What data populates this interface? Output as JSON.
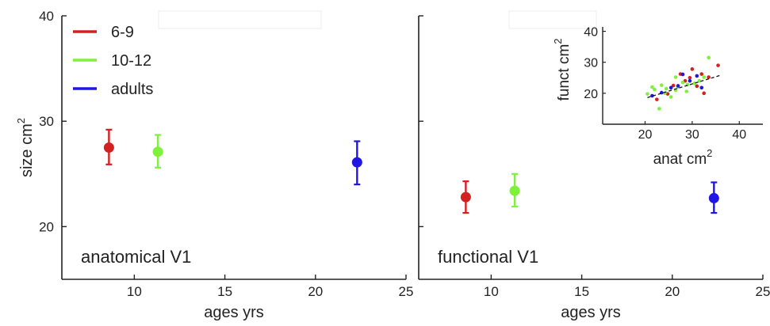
{
  "colors": {
    "c69": "#d32020",
    "c1012": "#7ef23a",
    "cad": "#1f16e6",
    "axis": "#222222"
  },
  "legend": {
    "items": [
      {
        "label": "6-9",
        "color": "#d32020"
      },
      {
        "label": "10-12",
        "color": "#7ef23a"
      },
      {
        "label": "adults",
        "color": "#1f16e6"
      }
    ]
  },
  "chart_data": [
    {
      "type": "scatter",
      "title": "anatomical V1",
      "xlabel": "ages yrs",
      "ylabel": "size cm",
      "ylabel_sup": "2",
      "xlim": [
        6,
        25
      ],
      "ylim": [
        15,
        40
      ],
      "xticks": [
        10,
        15,
        20,
        25
      ],
      "yticks": [
        20,
        30,
        40
      ],
      "series": [
        {
          "name": "6-9",
          "color": "#d32020",
          "x": 8.6,
          "y": 27.5,
          "err": [
            25.9,
            29.2
          ]
        },
        {
          "name": "10-12",
          "color": "#7ef23a",
          "x": 11.3,
          "y": 27.1,
          "err": [
            25.6,
            28.7
          ]
        },
        {
          "name": "adults",
          "color": "#1f16e6",
          "x": 22.3,
          "y": 26.1,
          "err": [
            24.0,
            28.1
          ]
        }
      ]
    },
    {
      "type": "scatter",
      "title": "functional V1",
      "xlabel": "ages yrs",
      "xlim": [
        6,
        25
      ],
      "ylim": [
        15,
        40
      ],
      "xticks": [
        10,
        15,
        20,
        25
      ],
      "series": [
        {
          "name": "6-9",
          "color": "#d32020",
          "x": 8.6,
          "y": 22.8,
          "err": [
            21.3,
            24.3
          ]
        },
        {
          "name": "10-12",
          "color": "#7ef23a",
          "x": 11.3,
          "y": 23.4,
          "err": [
            21.9,
            25.0
          ]
        },
        {
          "name": "adults",
          "color": "#1f16e6",
          "x": 22.3,
          "y": 22.7,
          "err": [
            21.3,
            24.2
          ]
        }
      ]
    },
    {
      "type": "scatter",
      "xlabel": "anat cm",
      "xlabel_sup": "2",
      "ylabel": "funct cm",
      "ylabel_sup": "2",
      "xlim": [
        11,
        45
      ],
      "ylim": [
        10,
        45
      ],
      "xticks": [
        20,
        30,
        40
      ],
      "yticks": [
        20,
        30,
        40
      ],
      "fit_line": [
        [
          20.5,
          18.6
        ],
        [
          36.0,
          25.8
        ]
      ],
      "series": [
        {
          "name": "6-9",
          "color": "#d32020",
          "points": [
            [
              22.5,
              18.0
            ],
            [
              24.8,
              19.8
            ],
            [
              26.0,
              22.5
            ],
            [
              27.5,
              26.2
            ],
            [
              28.5,
              24.0
            ],
            [
              30.0,
              27.8
            ],
            [
              31.0,
              22.3
            ],
            [
              32.0,
              26.2
            ],
            [
              33.5,
              25.2
            ],
            [
              35.5,
              29.0
            ],
            [
              32.5,
              20.0
            ],
            [
              29.5,
              25.0
            ]
          ]
        },
        {
          "name": "10-12",
          "color": "#7ef23a",
          "points": [
            [
              20.5,
              19.8
            ],
            [
              21.5,
              22.0
            ],
            [
              22.0,
              21.2
            ],
            [
              23.0,
              15.0
            ],
            [
              23.5,
              22.6
            ],
            [
              24.5,
              21.5
            ],
            [
              25.5,
              18.8
            ],
            [
              26.5,
              21.0
            ],
            [
              27.0,
              22.0
            ],
            [
              28.0,
              23.5
            ],
            [
              29.0,
              22.8
            ],
            [
              30.5,
              23.2
            ],
            [
              31.5,
              24.0
            ],
            [
              32.5,
              25.2
            ],
            [
              33.5,
              31.5
            ],
            [
              26.5,
              25.2
            ],
            [
              28.8,
              20.6
            ],
            [
              24.2,
              20.0
            ]
          ]
        },
        {
          "name": "adults",
          "color": "#1f16e6",
          "points": [
            [
              21.5,
              19.2
            ],
            [
              23.5,
              20.2
            ],
            [
              25.5,
              21.8
            ],
            [
              27.0,
              22.4
            ],
            [
              28.0,
              26.1
            ],
            [
              29.5,
              24.0
            ],
            [
              31.0,
              25.6
            ],
            [
              32.0,
              21.8
            ]
          ]
        }
      ]
    }
  ]
}
